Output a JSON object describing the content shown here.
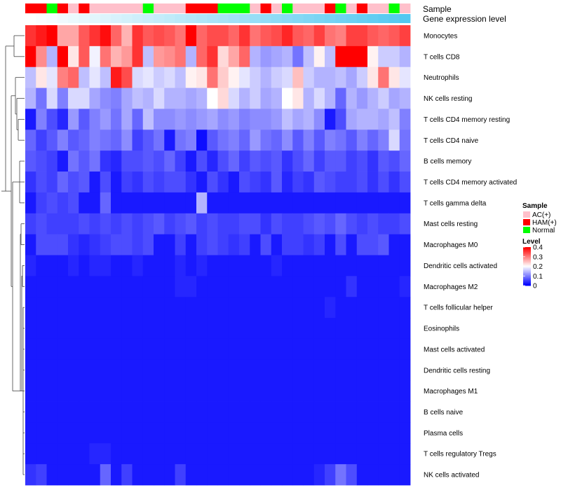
{
  "chart_data": {
    "type": "heatmap",
    "title": "",
    "annotation_rows": [
      "Sample",
      "Gene expression level"
    ],
    "rows": [
      "Monocytes",
      "T cells CD8",
      "Neutrophils",
      "NK cells resting",
      "T cells CD4 memory resting",
      "T cells CD4 naive",
      "B cells memory",
      "T cells CD4 memory activated",
      "T cells gamma delta",
      "Mast cells resting",
      "Macrophages M0",
      "Dendritic cells activated",
      "Macrophages M2",
      "T cells follicular helper",
      "Eosinophils",
      "Mast cells activated",
      "Dendritic cells resting",
      "Macrophages M1",
      "B cells naive",
      "Plasma cells",
      "T cells regulatory  Tregs",
      "NK cells activated"
    ],
    "sample_groups": [
      "HAM(+)",
      "HAM(+)",
      "Normal",
      "HAM(+)",
      "AC(+)",
      "HAM(+)",
      "AC(+)",
      "AC(+)",
      "AC(+)",
      "AC(+)",
      "AC(+)",
      "Normal",
      "AC(+)",
      "AC(+)",
      "AC(+)",
      "HAM(+)",
      "HAM(+)",
      "HAM(+)",
      "Normal",
      "Normal",
      "Normal",
      "AC(+)",
      "HAM(+)",
      "AC(+)",
      "Normal",
      "AC(+)",
      "AC(+)",
      "AC(+)",
      "HAM(+)",
      "Normal",
      "AC(+)",
      "HAM(+)",
      "AC(+)",
      "AC(+)",
      "Normal",
      "AC(+)"
    ],
    "legend": {
      "sample": {
        "title": "Sample",
        "entries": [
          {
            "label": "AC(+)",
            "color": "#ffc0cb"
          },
          {
            "label": "HAM(+)",
            "color": "#ff0000"
          },
          {
            "label": "Normal",
            "color": "#00ff00"
          }
        ]
      },
      "level": {
        "title": "Level",
        "ticks": [
          "0.4",
          "0.3",
          "0.2",
          "0.1",
          "0"
        ],
        "min": 0,
        "max": 0.4,
        "low_color": "#0000ff",
        "mid_color": "#ffffff",
        "high_color": "#ff0000"
      }
    },
    "gene_expression_gradient": [
      "#ffffff",
      "#53c8f0"
    ],
    "values": [
      [
        0.36,
        0.38,
        0.4,
        0.27,
        0.27,
        0.33,
        0.36,
        0.39,
        0.32,
        0.26,
        0.36,
        0.33,
        0.34,
        0.33,
        0.31,
        0.4,
        0.32,
        0.34,
        0.34,
        0.32,
        0.36,
        0.31,
        0.33,
        0.34,
        0.37,
        0.33,
        0.32,
        0.35,
        0.31,
        0.3,
        0.35,
        0.35,
        0.33,
        0.32,
        0.33,
        0.35
      ],
      [
        0.4,
        0.29,
        0.14,
        0.4,
        0.22,
        0.33,
        0.19,
        0.31,
        0.26,
        0.28,
        0.36,
        0.15,
        0.28,
        0.29,
        0.31,
        0.14,
        0.32,
        0.36,
        0.23,
        0.27,
        0.32,
        0.14,
        0.12,
        0.13,
        0.14,
        0.09,
        0.15,
        0.21,
        0.15,
        0.4,
        0.4,
        0.4,
        0.21,
        0.16,
        0.16,
        0.14
      ],
      [
        0.15,
        0.22,
        0.18,
        0.3,
        0.32,
        0.15,
        0.18,
        0.15,
        0.38,
        0.34,
        0.17,
        0.18,
        0.16,
        0.17,
        0.15,
        0.21,
        0.22,
        0.31,
        0.24,
        0.21,
        0.18,
        0.16,
        0.14,
        0.16,
        0.17,
        0.25,
        0.16,
        0.14,
        0.14,
        0.15,
        0.13,
        0.16,
        0.22,
        0.31,
        0.22,
        0.18
      ],
      [
        0.14,
        0.09,
        0.17,
        0.1,
        0.17,
        0.17,
        0.13,
        0.11,
        0.1,
        0.13,
        0.15,
        0.14,
        0.17,
        0.14,
        0.14,
        0.13,
        0.14,
        0.2,
        0.23,
        0.17,
        0.14,
        0.16,
        0.13,
        0.14,
        0.2,
        0.22,
        0.14,
        0.17,
        0.14,
        0.08,
        0.14,
        0.12,
        0.14,
        0.16,
        0.13,
        0.14
      ],
      [
        0.02,
        0.1,
        0.06,
        0.03,
        0.12,
        0.07,
        0.1,
        0.12,
        0.09,
        0.13,
        0.08,
        0.15,
        0.11,
        0.11,
        0.12,
        0.11,
        0.12,
        0.13,
        0.11,
        0.12,
        0.1,
        0.11,
        0.11,
        0.12,
        0.15,
        0.13,
        0.14,
        0.11,
        0.02,
        0.06,
        0.13,
        0.14,
        0.14,
        0.13,
        0.15,
        0.1
      ],
      [
        0.08,
        0.05,
        0.07,
        0.1,
        0.07,
        0.08,
        0.1,
        0.09,
        0.08,
        0.11,
        0.05,
        0.07,
        0.09,
        0.02,
        0.09,
        0.1,
        0.01,
        0.07,
        0.09,
        0.1,
        0.08,
        0.12,
        0.09,
        0.08,
        0.11,
        0.07,
        0.1,
        0.07,
        0.1,
        0.09,
        0.07,
        0.1,
        0.08,
        0.1,
        0.17,
        0.09
      ],
      [
        0.07,
        0.06,
        0.05,
        0.02,
        0.09,
        0.07,
        0.09,
        0.04,
        0.03,
        0.06,
        0.06,
        0.07,
        0.06,
        0.08,
        0.05,
        0.02,
        0.06,
        0.03,
        0.06,
        0.08,
        0.05,
        0.07,
        0.06,
        0.07,
        0.04,
        0.06,
        0.08,
        0.05,
        0.07,
        0.07,
        0.05,
        0.06,
        0.04,
        0.07,
        0.06,
        0.08
      ],
      [
        0.04,
        0.06,
        0.05,
        0.08,
        0.06,
        0.07,
        0.02,
        0.06,
        0.02,
        0.05,
        0.04,
        0.06,
        0.05,
        0.06,
        0.06,
        0.04,
        0.02,
        0.06,
        0.04,
        0.02,
        0.06,
        0.05,
        0.04,
        0.07,
        0.03,
        0.05,
        0.04,
        0.07,
        0.06,
        0.05,
        0.05,
        0.06,
        0.04,
        0.06,
        0.04,
        0.06
      ],
      [
        0.02,
        0.05,
        0.06,
        0.05,
        0.06,
        0.02,
        0.02,
        0.08,
        0.02,
        0.02,
        0.02,
        0.02,
        0.02,
        0.02,
        0.02,
        0.02,
        0.14,
        0.02,
        0.02,
        0.02,
        0.02,
        0.02,
        0.02,
        0.02,
        0.02,
        0.02,
        0.02,
        0.02,
        0.02,
        0.02,
        0.02,
        0.02,
        0.02,
        0.02,
        0.02,
        0.02
      ],
      [
        0.05,
        0.06,
        0.05,
        0.05,
        0.05,
        0.06,
        0.05,
        0.06,
        0.05,
        0.06,
        0.05,
        0.06,
        0.07,
        0.05,
        0.06,
        0.07,
        0.05,
        0.06,
        0.05,
        0.05,
        0.06,
        0.06,
        0.04,
        0.06,
        0.05,
        0.05,
        0.06,
        0.07,
        0.06,
        0.08,
        0.06,
        0.05,
        0.06,
        0.05,
        0.05,
        0.06
      ],
      [
        0.02,
        0.06,
        0.06,
        0.06,
        0.04,
        0.03,
        0.04,
        0.05,
        0.06,
        0.06,
        0.05,
        0.06,
        0.02,
        0.02,
        0.05,
        0.02,
        0.05,
        0.06,
        0.05,
        0.04,
        0.05,
        0.02,
        0.06,
        0.02,
        0.05,
        0.05,
        0.04,
        0.05,
        0.02,
        0.06,
        0.02,
        0.06,
        0.06,
        0.07,
        0.02,
        0.02
      ],
      [
        0.03,
        0.02,
        0.02,
        0.02,
        0.03,
        0.02,
        0.03,
        0.03,
        0.02,
        0.02,
        0.03,
        0.02,
        0.02,
        0.02,
        0.03,
        0.02,
        0.03,
        0.02,
        0.02,
        0.02,
        0.02,
        0.02,
        0.02,
        0.03,
        0.02,
        0.02,
        0.02,
        0.02,
        0.02,
        0.02,
        0.02,
        0.02,
        0.02,
        0.02,
        0.02,
        0.02
      ],
      [
        0.02,
        0.02,
        0.02,
        0.02,
        0.02,
        0.02,
        0.02,
        0.02,
        0.02,
        0.02,
        0.02,
        0.02,
        0.02,
        0.02,
        0.03,
        0.03,
        0.02,
        0.02,
        0.02,
        0.02,
        0.02,
        0.02,
        0.02,
        0.02,
        0.02,
        0.02,
        0.02,
        0.02,
        0.02,
        0.02,
        0.04,
        0.02,
        0.02,
        0.02,
        0.02,
        0.03
      ],
      [
        0.02,
        0.02,
        0.02,
        0.02,
        0.02,
        0.02,
        0.02,
        0.02,
        0.02,
        0.02,
        0.02,
        0.02,
        0.02,
        0.02,
        0.02,
        0.02,
        0.02,
        0.02,
        0.02,
        0.02,
        0.02,
        0.02,
        0.02,
        0.02,
        0.02,
        0.02,
        0.02,
        0.02,
        0.03,
        0.02,
        0.02,
        0.02,
        0.02,
        0.02,
        0.02,
        0.02
      ],
      [
        0.02,
        0.02,
        0.02,
        0.02,
        0.02,
        0.02,
        0.02,
        0.02,
        0.02,
        0.02,
        0.02,
        0.02,
        0.02,
        0.02,
        0.02,
        0.02,
        0.02,
        0.02,
        0.02,
        0.02,
        0.02,
        0.02,
        0.02,
        0.02,
        0.02,
        0.02,
        0.02,
        0.02,
        0.02,
        0.02,
        0.02,
        0.02,
        0.02,
        0.02,
        0.02,
        0.02
      ],
      [
        0.02,
        0.02,
        0.02,
        0.02,
        0.02,
        0.02,
        0.02,
        0.02,
        0.02,
        0.02,
        0.02,
        0.02,
        0.02,
        0.02,
        0.02,
        0.02,
        0.02,
        0.02,
        0.02,
        0.02,
        0.02,
        0.02,
        0.02,
        0.02,
        0.02,
        0.02,
        0.02,
        0.02,
        0.02,
        0.02,
        0.02,
        0.02,
        0.02,
        0.02,
        0.02,
        0.02
      ],
      [
        0.02,
        0.02,
        0.02,
        0.02,
        0.02,
        0.02,
        0.02,
        0.02,
        0.02,
        0.02,
        0.02,
        0.02,
        0.02,
        0.02,
        0.02,
        0.02,
        0.02,
        0.02,
        0.02,
        0.02,
        0.02,
        0.02,
        0.02,
        0.02,
        0.02,
        0.02,
        0.02,
        0.02,
        0.02,
        0.02,
        0.02,
        0.02,
        0.02,
        0.02,
        0.02,
        0.02
      ],
      [
        0.02,
        0.02,
        0.02,
        0.02,
        0.02,
        0.02,
        0.02,
        0.02,
        0.02,
        0.02,
        0.02,
        0.02,
        0.02,
        0.02,
        0.02,
        0.02,
        0.02,
        0.02,
        0.02,
        0.02,
        0.02,
        0.02,
        0.02,
        0.02,
        0.02,
        0.02,
        0.02,
        0.02,
        0.02,
        0.02,
        0.02,
        0.02,
        0.02,
        0.02,
        0.02,
        0.02
      ],
      [
        0.02,
        0.02,
        0.02,
        0.02,
        0.02,
        0.02,
        0.02,
        0.02,
        0.02,
        0.02,
        0.02,
        0.02,
        0.02,
        0.02,
        0.02,
        0.02,
        0.02,
        0.02,
        0.02,
        0.02,
        0.02,
        0.02,
        0.02,
        0.02,
        0.02,
        0.02,
        0.02,
        0.02,
        0.02,
        0.02,
        0.02,
        0.02,
        0.02,
        0.02,
        0.02,
        0.02
      ],
      [
        0.02,
        0.02,
        0.02,
        0.02,
        0.02,
        0.02,
        0.02,
        0.02,
        0.02,
        0.02,
        0.02,
        0.02,
        0.02,
        0.02,
        0.02,
        0.02,
        0.02,
        0.02,
        0.02,
        0.02,
        0.02,
        0.02,
        0.02,
        0.02,
        0.02,
        0.02,
        0.02,
        0.02,
        0.02,
        0.02,
        0.02,
        0.02,
        0.02,
        0.02,
        0.02,
        0.02
      ],
      [
        0.02,
        0.02,
        0.02,
        0.02,
        0.02,
        0.02,
        0.03,
        0.03,
        0.02,
        0.02,
        0.02,
        0.02,
        0.02,
        0.02,
        0.02,
        0.02,
        0.02,
        0.02,
        0.02,
        0.02,
        0.02,
        0.02,
        0.02,
        0.02,
        0.02,
        0.02,
        0.02,
        0.02,
        0.02,
        0.02,
        0.02,
        0.02,
        0.02,
        0.02,
        0.02,
        0.02
      ],
      [
        0.04,
        0.05,
        0.02,
        0.02,
        0.02,
        0.02,
        0.02,
        0.08,
        0.02,
        0.05,
        0.02,
        0.02,
        0.02,
        0.02,
        0.05,
        0.02,
        0.02,
        0.02,
        0.02,
        0.02,
        0.02,
        0.02,
        0.02,
        0.02,
        0.02,
        0.02,
        0.02,
        0.03,
        0.05,
        0.09,
        0.06,
        0.02,
        0.02,
        0.02,
        0.02,
        0.02
      ]
    ]
  }
}
